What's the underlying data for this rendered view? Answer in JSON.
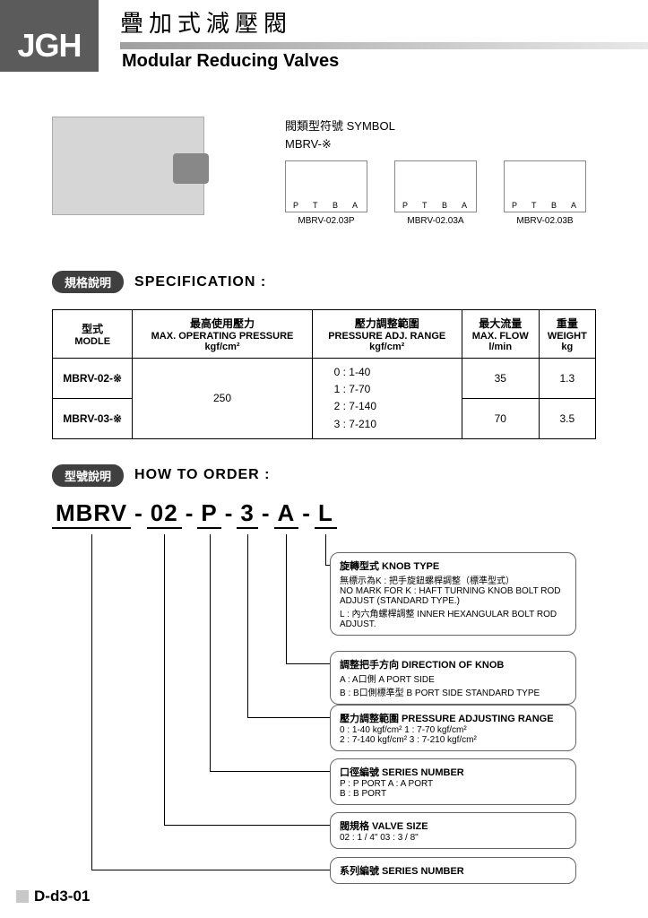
{
  "logo": "JGH",
  "title_cn": "疊加式減壓閥",
  "title_en": "Modular Reducing Valves",
  "symbol": {
    "heading": "閥類型符號 SYMBOL",
    "sub": "MBRV-※",
    "items": [
      "MBRV-02.03P",
      "MBRV-02.03A",
      "MBRV-02.03B"
    ],
    "ports": [
      "P",
      "T",
      "B",
      "A"
    ]
  },
  "spec_section": {
    "pill": "規格說明",
    "title": "SPECIFICATION :"
  },
  "spec_table": {
    "headers": [
      {
        "cn": "型式",
        "en": "MODLE",
        "unit": ""
      },
      {
        "cn": "最高使用壓力",
        "en": "MAX. OPERATING PRESSURE",
        "unit": "kgf/cm²"
      },
      {
        "cn": "壓力調整範圍",
        "en": "PRESSURE ADJ. RANGE",
        "unit": "kgf/cm²"
      },
      {
        "cn": "最大流量",
        "en": "MAX. FLOW",
        "unit": "l/min"
      },
      {
        "cn": "重量",
        "en": "WEIGHT",
        "unit": "kg"
      }
    ],
    "models": [
      "MBRV-02-※",
      "MBRV-03-※"
    ],
    "max_pressure": "250",
    "adj_range": [
      "0 : 1-40",
      "1 : 7-70",
      "2 : 7-140",
      "3 : 7-210"
    ],
    "flow": [
      "35",
      "70"
    ],
    "weight": [
      "1.3",
      "3.5"
    ]
  },
  "order_section": {
    "pill": "型號說明",
    "title": "HOW TO ORDER :"
  },
  "order_code": [
    "MBRV",
    "02",
    "P",
    "3",
    "A",
    "L"
  ],
  "order_desc": [
    {
      "title": "旋轉型式 KNOB TYPE",
      "lines": [
        "無標示為K : 把手旋鈕螺桿調整（標準型式）",
        "NO MARK FOR K : HAFT TURNING KNOB BOLT ROD",
        "ADJUST (STANDARD TYPE.)",
        "L : 內六角螺桿調整  INNER HEXANGULAR BOLT ROD",
        "ADJUST."
      ]
    },
    {
      "title": "調整把手方向 DIRECTION OF KNOB",
      "lines": [
        "A : A口側  A PORT SIDE",
        "B : B口側標準型  B PORT SIDE STANDARD TYPE"
      ]
    },
    {
      "title": "壓力調整範圍 PRESSURE ADJUSTING RANGE",
      "lines": [
        "0 : 1-40 kgf/cm²        1 : 7-70 kgf/cm²",
        "2 : 7-140 kgf/cm²      3 : 7-210 kgf/cm²"
      ]
    },
    {
      "title": "口徑編號 SERIES NUMBER",
      "lines": [
        "P :  P PORT              A :  A PORT",
        "B :  B PORT"
      ]
    },
    {
      "title": "閥規格 VALVE SIZE",
      "lines": [
        "02 : 1 / 4\"        03 : 3 / 8\""
      ]
    },
    {
      "title": "系列編號 SERIES NUMBER",
      "lines": []
    }
  ],
  "footer": "D-d3-01"
}
